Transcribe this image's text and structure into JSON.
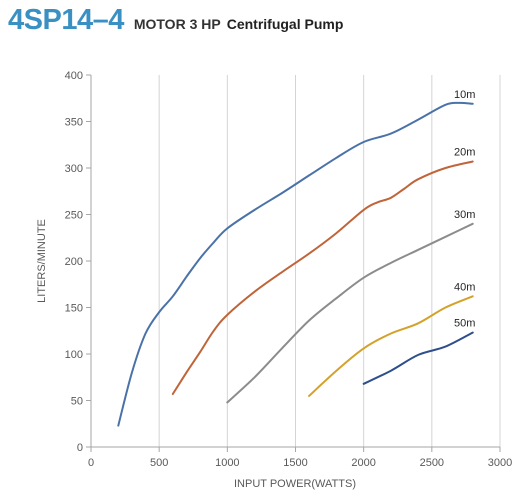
{
  "header": {
    "model": "4SP14–4",
    "motor": "MOTOR 3 HP",
    "pump_type": "Centrifugal Pump"
  },
  "colors": {
    "model_text": "#3a8fc3",
    "grid": "#d4d4d4",
    "axis": "#a6a6a6",
    "tick_text": "#595959"
  },
  "chart_data": {
    "type": "line",
    "title": "",
    "xlabel": "INPUT POWER(WATTS)",
    "ylabel": "LITERS/MINUTE",
    "xlim": [
      0,
      3000
    ],
    "ylim": [
      0,
      400
    ],
    "x_ticks": [
      0,
      500,
      1000,
      1500,
      2000,
      2500,
      3000
    ],
    "y_ticks": [
      0,
      50,
      100,
      150,
      200,
      250,
      300,
      350,
      400
    ],
    "grid": "vertical",
    "legend": "inline labels at line ends",
    "series": [
      {
        "name": "10m",
        "color": "#4a72a8",
        "x": [
          200,
          300,
          400,
          500,
          600,
          700,
          800,
          900,
          1000,
          1200,
          1400,
          1600,
          1800,
          2000,
          2200,
          2400,
          2600,
          2700,
          2800
        ],
        "y": [
          23,
          80,
          122,
          145,
          162,
          183,
          203,
          220,
          235,
          255,
          273,
          292,
          311,
          328,
          337,
          352,
          368,
          370,
          369
        ]
      },
      {
        "name": "20m",
        "color": "#c0643a",
        "x": [
          600,
          700,
          800,
          900,
          1000,
          1200,
          1400,
          1600,
          1800,
          2000,
          2100,
          2200,
          2300,
          2400,
          2600,
          2800
        ],
        "y": [
          57,
          80,
          102,
          125,
          142,
          167,
          188,
          208,
          230,
          255,
          263,
          268,
          278,
          288,
          300,
          307
        ]
      },
      {
        "name": "30m",
        "color": "#8c8c8c",
        "x": [
          1000,
          1200,
          1400,
          1600,
          1800,
          2000,
          2200,
          2400,
          2600,
          2800
        ],
        "y": [
          48,
          75,
          106,
          136,
          160,
          182,
          198,
          212,
          226,
          240
        ]
      },
      {
        "name": "40m",
        "color": "#d4a22a",
        "x": [
          1600,
          1800,
          2000,
          2200,
          2400,
          2600,
          2800
        ],
        "y": [
          55,
          82,
          106,
          122,
          133,
          150,
          162
        ]
      },
      {
        "name": "50m",
        "color": "#2e4f8c",
        "x": [
          2000,
          2200,
          2400,
          2600,
          2800
        ],
        "y": [
          68,
          82,
          99,
          108,
          123
        ]
      }
    ]
  }
}
